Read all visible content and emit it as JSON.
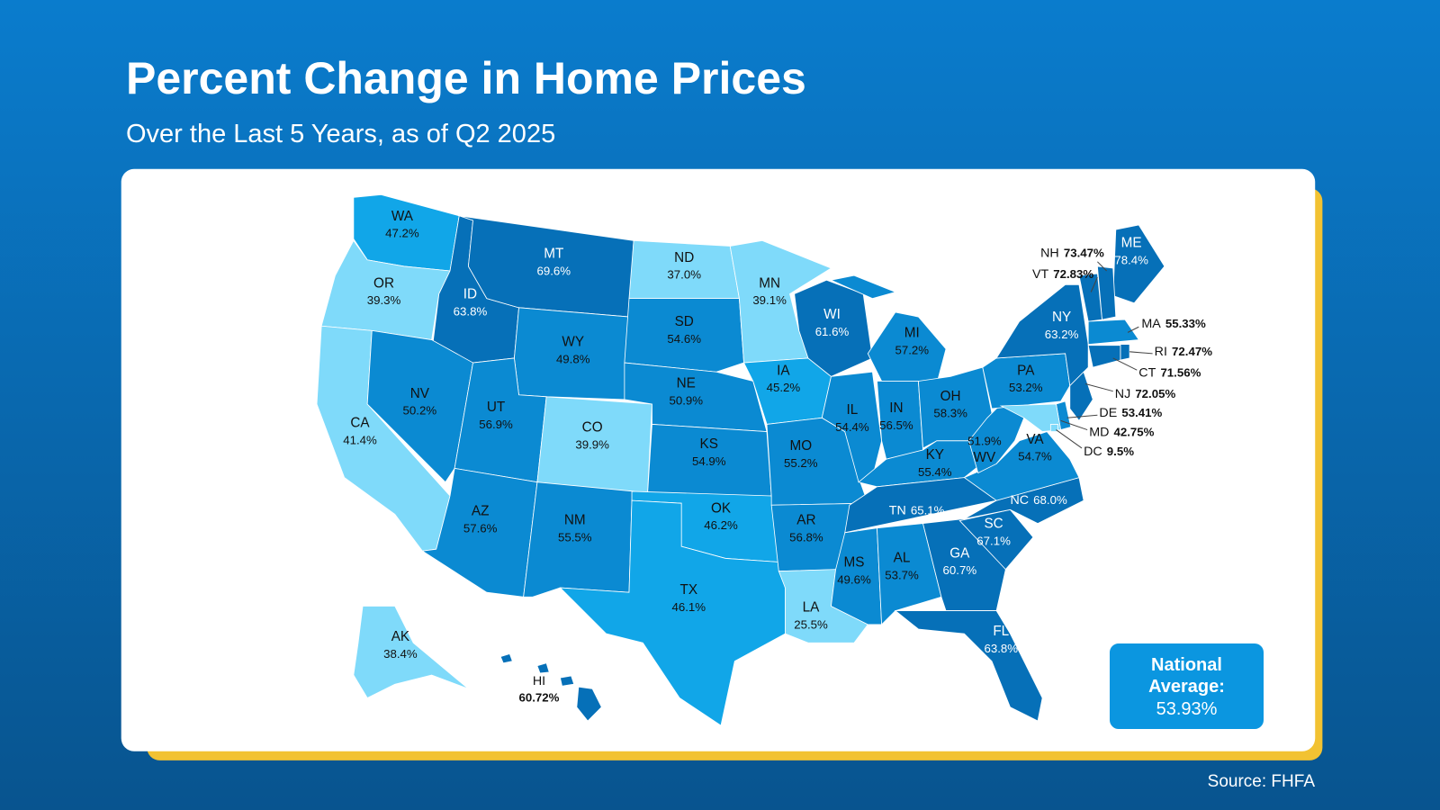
{
  "header": {
    "title": "Percent Change in Home Prices",
    "subtitle": "Over the Last 5 Years, as of Q2 2025"
  },
  "map": {
    "states": [
      {
        "abbr": "WA",
        "value": 47.2,
        "value_label": "47.2%",
        "color": "#11a6e8"
      },
      {
        "abbr": "OR",
        "value": 39.3,
        "value_label": "39.3%",
        "color": "#7fdafa"
      },
      {
        "abbr": "CA",
        "value": 41.4,
        "value_label": "41.4%",
        "color": "#7fdafa"
      },
      {
        "abbr": "ID",
        "value": 63.8,
        "value_label": "63.8%",
        "color": "#0670b8"
      },
      {
        "abbr": "NV",
        "value": 50.2,
        "value_label": "50.2%",
        "color": "#0b8ad2"
      },
      {
        "abbr": "MT",
        "value": 69.6,
        "value_label": "69.6%",
        "color": "#0670b8"
      },
      {
        "abbr": "WY",
        "value": 49.8,
        "value_label": "49.8%",
        "color": "#0b8ad2"
      },
      {
        "abbr": "UT",
        "value": 56.9,
        "value_label": "56.9%",
        "color": "#0b8ad2"
      },
      {
        "abbr": "AZ",
        "value": 57.6,
        "value_label": "57.6%",
        "color": "#0b8ad2"
      },
      {
        "abbr": "CO",
        "value": 39.9,
        "value_label": "39.9%",
        "color": "#7fdafa"
      },
      {
        "abbr": "NM",
        "value": 55.5,
        "value_label": "55.5%",
        "color": "#0b8ad2"
      },
      {
        "abbr": "ND",
        "value": 37.0,
        "value_label": "37.0%",
        "color": "#7fdafa"
      },
      {
        "abbr": "SD",
        "value": 54.6,
        "value_label": "54.6%",
        "color": "#0b8ad2"
      },
      {
        "abbr": "NE",
        "value": 50.9,
        "value_label": "50.9%",
        "color": "#0b8ad2"
      },
      {
        "abbr": "KS",
        "value": 54.9,
        "value_label": "54.9%",
        "color": "#0b8ad2"
      },
      {
        "abbr": "OK",
        "value": 46.2,
        "value_label": "46.2%",
        "color": "#11a6e8"
      },
      {
        "abbr": "TX",
        "value": 46.1,
        "value_label": "46.1%",
        "color": "#11a6e8"
      },
      {
        "abbr": "MN",
        "value": 39.1,
        "value_label": "39.1%",
        "color": "#7fdafa"
      },
      {
        "abbr": "IA",
        "value": 45.2,
        "value_label": "45.2%",
        "color": "#11a6e8"
      },
      {
        "abbr": "MO",
        "value": 55.2,
        "value_label": "55.2%",
        "color": "#0b8ad2"
      },
      {
        "abbr": "AR",
        "value": 56.8,
        "value_label": "56.8%",
        "color": "#0b8ad2"
      },
      {
        "abbr": "LA",
        "value": 25.5,
        "value_label": "25.5%",
        "color": "#7fdafa"
      },
      {
        "abbr": "WI",
        "value": 61.6,
        "value_label": "61.6%",
        "color": "#0670b8"
      },
      {
        "abbr": "IL",
        "value": 54.4,
        "value_label": "54.4%",
        "color": "#0b8ad2"
      },
      {
        "abbr": "MI",
        "value": 57.2,
        "value_label": "57.2%",
        "color": "#0b8ad2"
      },
      {
        "abbr": "IN",
        "value": 56.5,
        "value_label": "56.5%",
        "color": "#0b8ad2"
      },
      {
        "abbr": "OH",
        "value": 58.3,
        "value_label": "58.3%",
        "color": "#0b8ad2"
      },
      {
        "abbr": "KY",
        "value": 55.4,
        "value_label": "55.4%",
        "color": "#0b8ad2"
      },
      {
        "abbr": "TN",
        "value": 65.1,
        "value_label": "65.1%",
        "color": "#0670b8"
      },
      {
        "abbr": "MS",
        "value": 49.6,
        "value_label": "49.6%",
        "color": "#0b8ad2"
      },
      {
        "abbr": "AL",
        "value": 53.7,
        "value_label": "53.7%",
        "color": "#0b8ad2"
      },
      {
        "abbr": "GA",
        "value": 60.7,
        "value_label": "60.7%",
        "color": "#0670b8"
      },
      {
        "abbr": "FL",
        "value": 63.8,
        "value_label": "63.8%",
        "color": "#0670b8"
      },
      {
        "abbr": "SC",
        "value": 67.1,
        "value_label": "67.1%",
        "color": "#0670b8"
      },
      {
        "abbr": "NC",
        "value": 68.0,
        "value_label": "68.0%",
        "color": "#0670b8"
      },
      {
        "abbr": "VA",
        "value": 54.7,
        "value_label": "54.7%",
        "color": "#0b8ad2"
      },
      {
        "abbr": "WV",
        "value": 51.9,
        "value_label": "51.9%",
        "color": "#0b8ad2"
      },
      {
        "abbr": "PA",
        "value": 53.2,
        "value_label": "53.2%",
        "color": "#0b8ad2"
      },
      {
        "abbr": "NY",
        "value": 63.2,
        "value_label": "63.2%",
        "color": "#0670b8"
      },
      {
        "abbr": "ME",
        "value": 78.4,
        "value_label": "78.4%",
        "color": "#0670b8"
      },
      {
        "abbr": "NH",
        "value": 73.47,
        "value_label": "73.47%",
        "color": "#0670b8"
      },
      {
        "abbr": "VT",
        "value": 72.83,
        "value_label": "72.83%",
        "color": "#0670b8"
      },
      {
        "abbr": "MA",
        "value": 55.33,
        "value_label": "55.33%",
        "color": "#0b8ad2"
      },
      {
        "abbr": "RI",
        "value": 72.47,
        "value_label": "72.47%",
        "color": "#0670b8"
      },
      {
        "abbr": "CT",
        "value": 71.56,
        "value_label": "71.56%",
        "color": "#0670b8"
      },
      {
        "abbr": "NJ",
        "value": 72.05,
        "value_label": "72.05%",
        "color": "#0670b8"
      },
      {
        "abbr": "DE",
        "value": 53.41,
        "value_label": "53.41%",
        "color": "#0b8ad2"
      },
      {
        "abbr": "MD",
        "value": 42.75,
        "value_label": "42.75%",
        "color": "#7fdafa"
      },
      {
        "abbr": "DC",
        "value": 9.5,
        "value_label": "9.5%",
        "color": "#7fdafa"
      },
      {
        "abbr": "AK",
        "value": 38.4,
        "value_label": "38.4%",
        "color": "#7fdafa"
      },
      {
        "abbr": "HI",
        "value": 60.72,
        "value_label": "60.72%",
        "color": "#0670b8"
      }
    ]
  },
  "national_average": {
    "label": "National Average:",
    "value_label": "53.93%"
  },
  "source": "Source: FHFA"
}
